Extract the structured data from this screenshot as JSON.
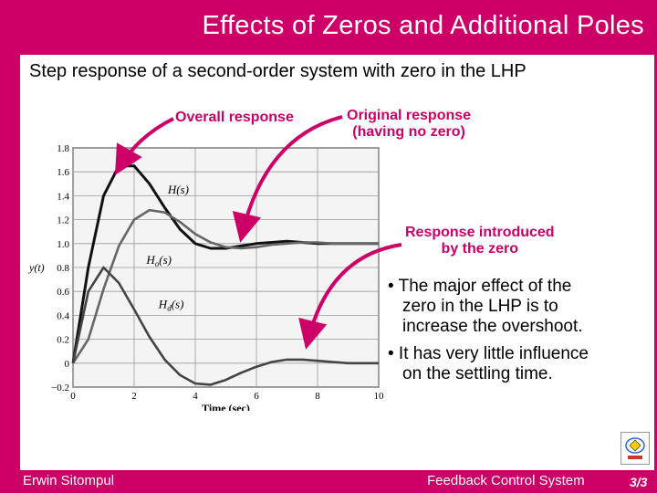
{
  "title": "Effects of Zeros and Additional Poles",
  "subtitle": "Step response of a second-order system with zero in the LHP",
  "callouts": {
    "overall": "Overall response",
    "original_line1": "Original response",
    "original_line2": "(having no zero)",
    "introduced_line1": "Response introduced",
    "introduced_line2": "by the zero"
  },
  "bullets": [
    {
      "line1": "• The major effect of the",
      "line2": "zero in the LHP is to",
      "line3": "increase the overshoot."
    },
    {
      "line1": "• It has very little influence",
      "line2": "on the settling time."
    }
  ],
  "footer": {
    "author": "Erwin Sitompul",
    "course": "Feedback Control System",
    "page": "3/3"
  },
  "colors": {
    "accent": "#cc0066",
    "curve_dark": "#111111",
    "curve_gray": "#555555"
  },
  "chart_data": {
    "type": "line",
    "xlabel": "Time (sec)",
    "ylabel": "y(t)",
    "xlim": [
      0,
      10
    ],
    "ylim": [
      -0.2,
      1.8
    ],
    "xticks": [
      "0",
      "2",
      "4",
      "6",
      "8",
      "10"
    ],
    "yticks": [
      "-0.2",
      "0",
      "0.2",
      "0.4",
      "0.6",
      "0.8",
      "1.0",
      "1.2",
      "1.4",
      "1.6",
      "1.8"
    ],
    "grid": true,
    "series": [
      {
        "name": "H(s)",
        "x": [
          0,
          0.5,
          1,
          1.5,
          2,
          2.5,
          3,
          3.5,
          4,
          4.5,
          5,
          5.5,
          6,
          6.5,
          7,
          7.5,
          8,
          8.5,
          9,
          9.5,
          10
        ],
        "y": [
          0,
          0.8,
          1.4,
          1.65,
          1.65,
          1.5,
          1.3,
          1.12,
          1.0,
          0.96,
          0.96,
          0.98,
          1.0,
          1.01,
          1.02,
          1.01,
          1.0,
          1.0,
          1.0,
          1.0,
          1.0
        ]
      },
      {
        "name": "H_o(s)",
        "x": [
          0,
          0.5,
          1,
          1.5,
          2,
          2.5,
          3,
          3.5,
          4,
          4.5,
          5,
          5.5,
          6,
          6.5,
          7,
          7.5,
          8,
          8.5,
          9,
          9.5,
          10
        ],
        "y": [
          0,
          0.2,
          0.62,
          0.98,
          1.2,
          1.28,
          1.26,
          1.18,
          1.08,
          1.01,
          0.97,
          0.96,
          0.97,
          0.99,
          1.0,
          1.01,
          1.01,
          1.0,
          1.0,
          1.0,
          1.0
        ]
      },
      {
        "name": "H_d(s)",
        "x": [
          0,
          0.5,
          1,
          1.5,
          2,
          2.5,
          3,
          3.5,
          4,
          4.5,
          5,
          5.5,
          6,
          6.5,
          7,
          7.5,
          8,
          8.5,
          9,
          9.5,
          10
        ],
        "y": [
          0,
          0.6,
          0.8,
          0.67,
          0.45,
          0.22,
          0.03,
          -0.1,
          -0.17,
          -0.18,
          -0.14,
          -0.08,
          -0.03,
          0.01,
          0.03,
          0.03,
          0.02,
          0.01,
          0.0,
          0.0,
          0.0
        ]
      }
    ],
    "labels": [
      "H(s)",
      "H",
      "o",
      "(s)",
      "H",
      "d",
      "(s)"
    ]
  }
}
